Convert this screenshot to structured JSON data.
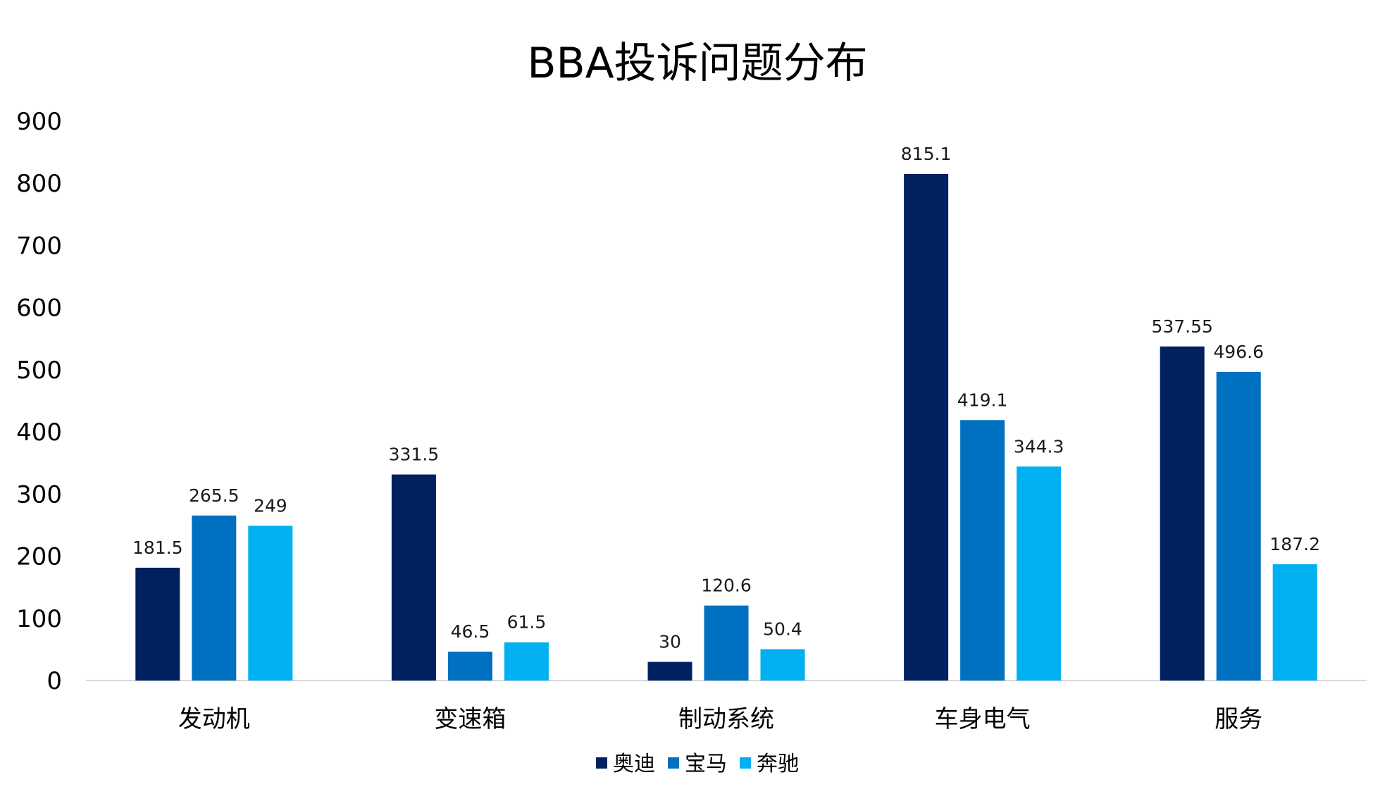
{
  "chart_data": {
    "type": "bar",
    "title": "BBA投诉问题分布",
    "xlabel": "",
    "ylabel": "",
    "categories": [
      "发动机",
      "变速箱",
      "制动系统",
      "车身电气",
      "服务"
    ],
    "series": [
      {
        "name": "奥迪",
        "color": "#002060",
        "values": [
          181.5,
          331.5,
          30,
          815.1,
          537.55
        ],
        "labels": [
          "181.5",
          "331.5",
          "30",
          "815.1",
          "537.55"
        ]
      },
      {
        "name": "宝马",
        "color": "#0070c0",
        "values": [
          265.5,
          46.5,
          120.6,
          419.1,
          496.6
        ],
        "labels": [
          "265.5",
          "46.5",
          "120.6",
          "419.1",
          "496.6"
        ]
      },
      {
        "name": "奔驰",
        "color": "#00b0f0",
        "values": [
          249,
          61.5,
          50.4,
          344.3,
          187.2
        ],
        "labels": [
          "249",
          "61.5",
          "50.4",
          "344.3",
          "187.2"
        ]
      }
    ],
    "ylim": [
      0,
      900
    ],
    "yticks": [
      "0",
      "100",
      "200",
      "300",
      "400",
      "500",
      "600",
      "700",
      "800",
      "900"
    ],
    "grid": false,
    "legend": "bottom-center"
  }
}
